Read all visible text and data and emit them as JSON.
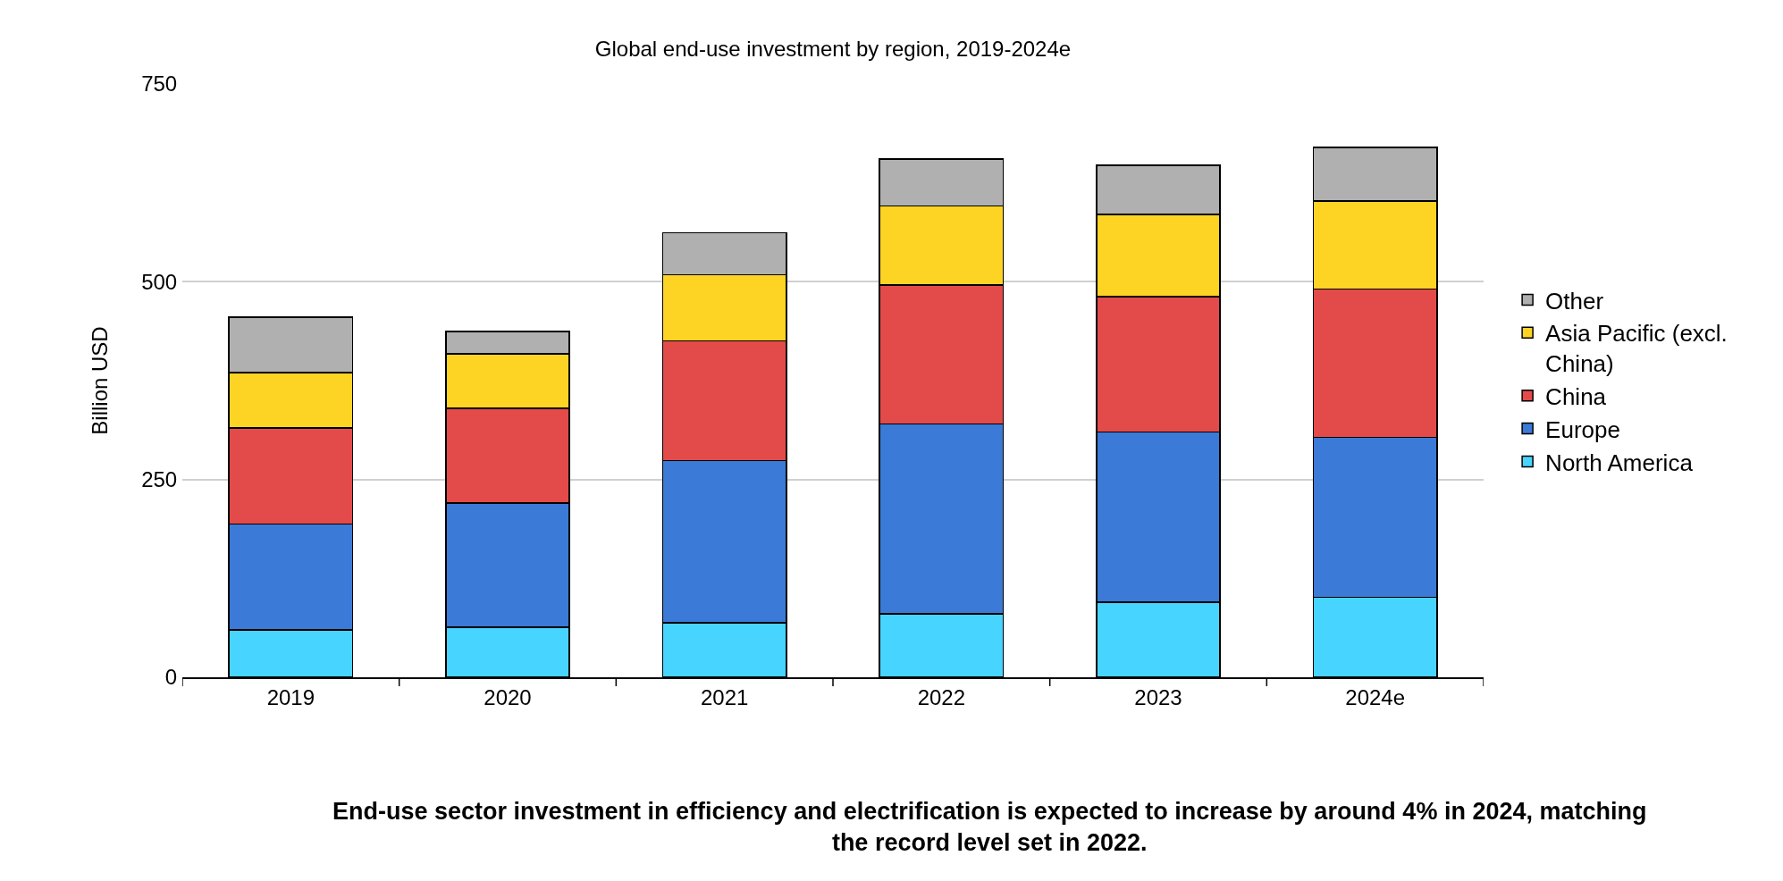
{
  "chart_data": {
    "type": "bar",
    "title": "Global end-use investment by region, 2019-2024e",
    "ylabel": "Billion USD",
    "categories": [
      "2019",
      "2020",
      "2021",
      "2022",
      "2023",
      "2024e"
    ],
    "stacked": true,
    "series": [
      {
        "name": "North America",
        "color": "#47d4ff",
        "values": [
          60,
          63,
          69,
          80,
          95,
          101
        ]
      },
      {
        "name": "Europe",
        "color": "#3b7ad6",
        "values": [
          134,
          157,
          205,
          240,
          215,
          202
        ]
      },
      {
        "name": "China",
        "color": "#e34b4a",
        "values": [
          121,
          120,
          151,
          176,
          171,
          188
        ]
      },
      {
        "name": "Asia Pacific (excl. China)",
        "color": "#fed424",
        "values": [
          70,
          69,
          84,
          100,
          104,
          111
        ]
      },
      {
        "name": "Other",
        "color": "#b0b0b0",
        "values": [
          70,
          28,
          53,
          59,
          62,
          68
        ]
      }
    ],
    "ylim": [
      0,
      750
    ],
    "yticks": [
      0,
      250,
      500,
      750
    ],
    "grid": "y",
    "legend": "right",
    "annotations": [
      "End-use sector investment in efficiency and electrification is expected to increase by around 4% in 2024, matching the record level set in 2022."
    ]
  }
}
